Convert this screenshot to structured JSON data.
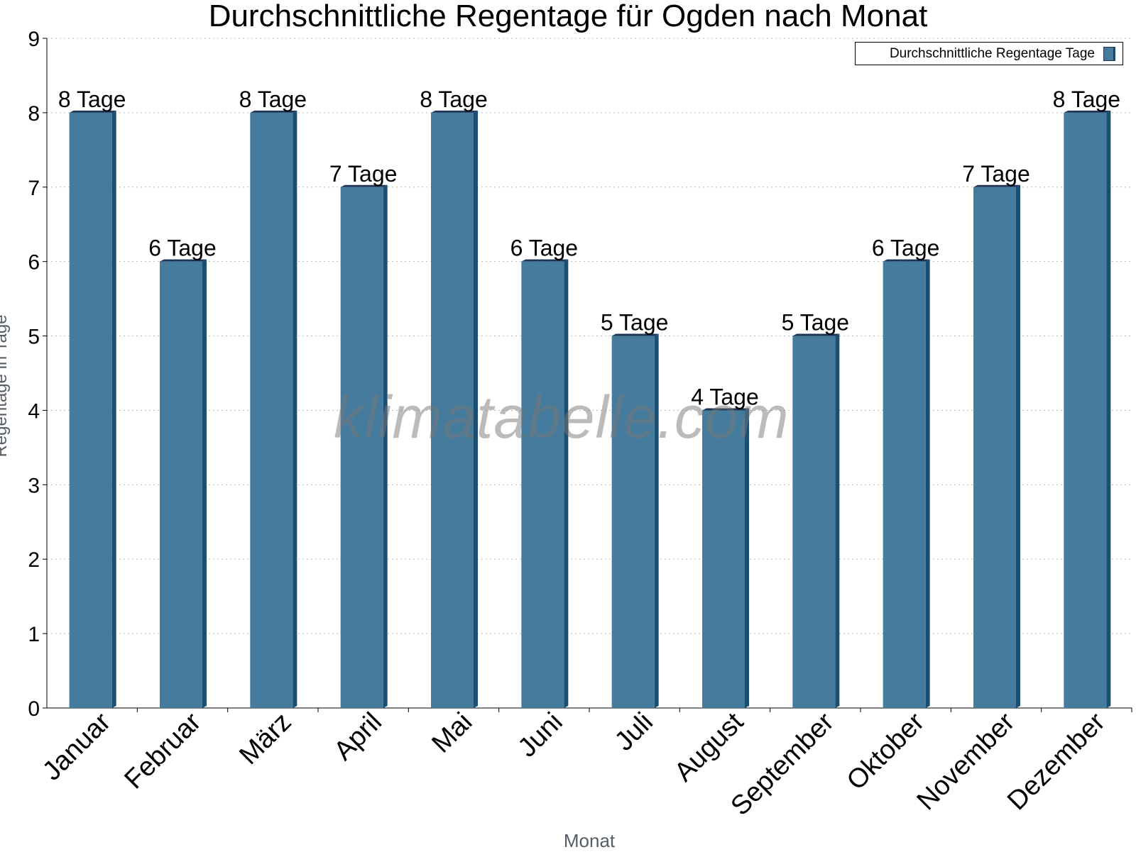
{
  "chart_data": {
    "type": "bar",
    "title": "Durchschnittliche Regentage für Ogden nach Monat",
    "xlabel": "Monat",
    "ylabel": "Regentage in Tage",
    "categories": [
      "Januar",
      "Februar",
      "März",
      "April",
      "Mai",
      "Juni",
      "Juli",
      "August",
      "September",
      "Oktober",
      "November",
      "Dezember"
    ],
    "series": [
      {
        "name": "Durchschnittliche Regentage Tage",
        "values": [
          8,
          6,
          8,
          7,
          8,
          6,
          5,
          4,
          5,
          6,
          7,
          8
        ],
        "labels": [
          "8 Tage",
          "6 Tage",
          "8 Tage",
          "7 Tage",
          "8 Tage",
          "6 Tage",
          "5 Tage",
          "4 Tage",
          "5 Tage",
          "6 Tage",
          "7 Tage",
          "8 Tage"
        ]
      }
    ],
    "ylim": [
      0,
      9
    ],
    "yticks": [
      "0",
      "1",
      "2",
      "3",
      "4",
      "5",
      "6",
      "7",
      "8",
      "9"
    ],
    "grid": true,
    "legend_position": "top-right",
    "colors": {
      "bar": "#457b9d",
      "bar_side": "#1b4f72",
      "bar_top": "#1d3557"
    }
  },
  "watermark": "klimatabelle.com"
}
